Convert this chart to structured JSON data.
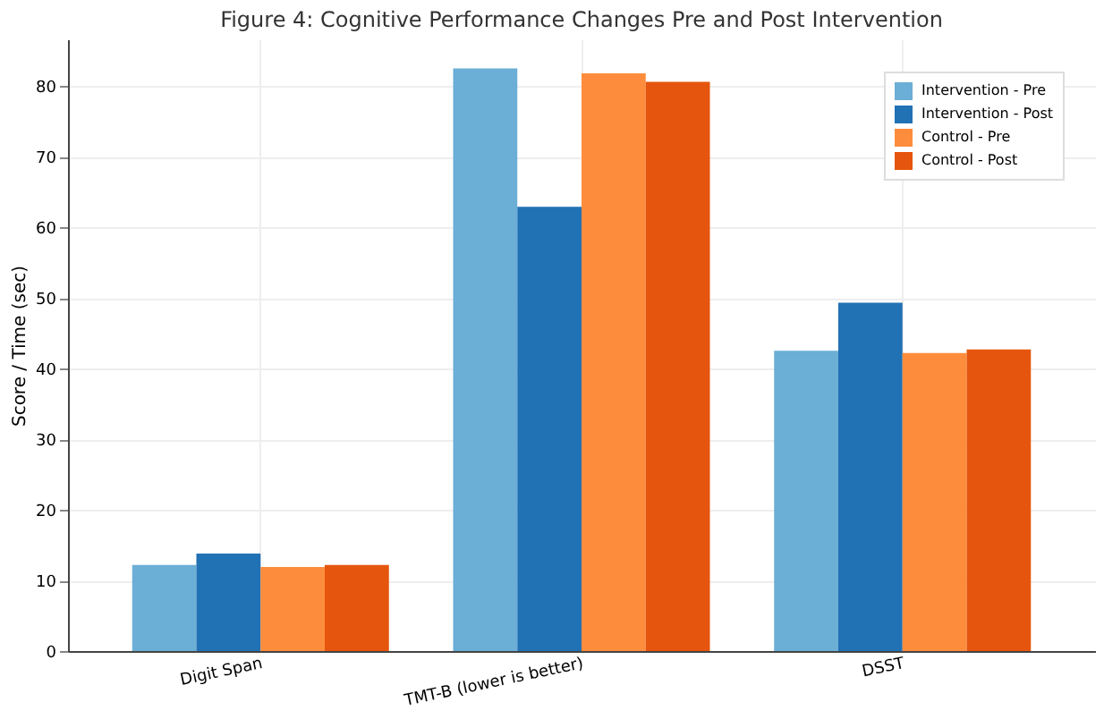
{
  "chart_data": {
    "type": "bar",
    "title": "Figure 4: Cognitive Performance Changes Pre and Post Intervention",
    "ylabel": "Score / Time (sec)",
    "categories": [
      "Digit Span",
      "TMT-B (lower is better)",
      "DSST"
    ],
    "series": [
      {
        "name": "Intervention - Pre",
        "color": "#6baed6",
        "values": [
          12.2,
          82.5,
          42.5
        ]
      },
      {
        "name": "Intervention - Post",
        "color": "#2171b5",
        "values": [
          13.8,
          62.9,
          49.3
        ]
      },
      {
        "name": "Control - Pre",
        "color": "#fd8d3c",
        "values": [
          11.9,
          81.8,
          42.2
        ]
      },
      {
        "name": "Control - Post",
        "color": "#e6550d",
        "values": [
          12.2,
          80.6,
          42.7
        ]
      }
    ],
    "ylim": [
      0,
      86.6
    ],
    "yticks": [
      0,
      10,
      20,
      30,
      40,
      50,
      60,
      70,
      80
    ],
    "grid": true,
    "legend": "top right"
  }
}
